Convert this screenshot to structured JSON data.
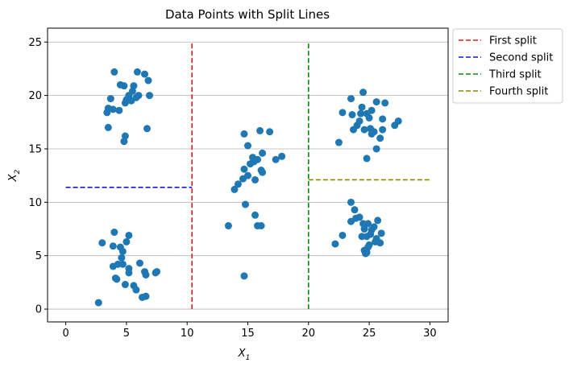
{
  "chart_data": {
    "type": "scatter",
    "title": "Data Points with Split Lines",
    "xlabel": "X",
    "xlabel_sub": "1",
    "ylabel": "X",
    "ylabel_sub": "2",
    "xlim": [
      -1.5,
      31.5
    ],
    "ylim": [
      -1.2,
      26.3
    ],
    "xticks": [
      0,
      5,
      10,
      15,
      20,
      25,
      30
    ],
    "yticks": [
      0,
      5,
      10,
      15,
      20,
      25
    ],
    "grid": "horizontal",
    "legend_position": "outside-top-right",
    "point_color": "#1f77b4",
    "points": [
      [
        5.9,
        22.2
      ],
      [
        4.0,
        22.2
      ],
      [
        6.5,
        22.0
      ],
      [
        6.8,
        21.4
      ],
      [
        4.5,
        21.0
      ],
      [
        4.8,
        20.9
      ],
      [
        5.6,
        20.9
      ],
      [
        5.5,
        20.4
      ],
      [
        5.2,
        20.0
      ],
      [
        6.0,
        20.0
      ],
      [
        6.9,
        20.0
      ],
      [
        3.7,
        19.7
      ],
      [
        5.8,
        19.8
      ],
      [
        5.0,
        19.6
      ],
      [
        5.4,
        19.5
      ],
      [
        4.9,
        19.3
      ],
      [
        3.5,
        18.8
      ],
      [
        3.9,
        18.7
      ],
      [
        4.4,
        18.6
      ],
      [
        3.4,
        18.4
      ],
      [
        3.5,
        17.0
      ],
      [
        6.7,
        16.9
      ],
      [
        4.9,
        16.2
      ],
      [
        4.8,
        15.7
      ],
      [
        14.7,
        16.4
      ],
      [
        16.0,
        16.7
      ],
      [
        16.8,
        16.6
      ],
      [
        15.0,
        15.3
      ],
      [
        17.8,
        14.3
      ],
      [
        16.2,
        14.6
      ],
      [
        15.4,
        14.2
      ],
      [
        17.3,
        14.0
      ],
      [
        15.8,
        14.0
      ],
      [
        15.2,
        13.6
      ],
      [
        15.5,
        13.8
      ],
      [
        14.7,
        13.1
      ],
      [
        16.1,
        13.0
      ],
      [
        15.0,
        12.5
      ],
      [
        16.2,
        12.8
      ],
      [
        14.6,
        12.2
      ],
      [
        15.6,
        12.1
      ],
      [
        14.2,
        11.7
      ],
      [
        13.9,
        11.2
      ],
      [
        14.8,
        9.8
      ],
      [
        15.6,
        8.8
      ],
      [
        13.4,
        7.8
      ],
      [
        15.8,
        7.8
      ],
      [
        16.1,
        7.8
      ],
      [
        14.7,
        3.1
      ],
      [
        24.5,
        20.3
      ],
      [
        23.5,
        19.7
      ],
      [
        25.6,
        19.4
      ],
      [
        26.3,
        19.3
      ],
      [
        24.4,
        18.9
      ],
      [
        25.2,
        18.6
      ],
      [
        22.8,
        18.4
      ],
      [
        23.6,
        18.2
      ],
      [
        24.3,
        18.3
      ],
      [
        24.8,
        18.3
      ],
      [
        25.0,
        17.9
      ],
      [
        24.2,
        17.6
      ],
      [
        26.1,
        17.8
      ],
      [
        27.4,
        17.6
      ],
      [
        27.1,
        17.2
      ],
      [
        24.0,
        17.2
      ],
      [
        25.1,
        16.9
      ],
      [
        24.6,
        16.8
      ],
      [
        23.7,
        16.8
      ],
      [
        25.4,
        16.6
      ],
      [
        26.1,
        16.8
      ],
      [
        25.2,
        16.4
      ],
      [
        25.9,
        16.0
      ],
      [
        22.5,
        15.6
      ],
      [
        25.6,
        15.0
      ],
      [
        24.8,
        14.1
      ],
      [
        23.5,
        10.0
      ],
      [
        23.8,
        9.3
      ],
      [
        24.2,
        8.6
      ],
      [
        24.9,
        8.0
      ],
      [
        23.5,
        8.2
      ],
      [
        25.7,
        8.3
      ],
      [
        23.9,
        8.5
      ],
      [
        24.5,
        8.0
      ],
      [
        25.4,
        7.7
      ],
      [
        25.2,
        7.4
      ],
      [
        24.6,
        7.5
      ],
      [
        26.0,
        7.1
      ],
      [
        25.1,
        7.0
      ],
      [
        24.8,
        6.8
      ],
      [
        24.4,
        6.8
      ],
      [
        22.8,
        6.9
      ],
      [
        25.5,
        6.3
      ],
      [
        25.9,
        6.2
      ],
      [
        25.6,
        6.6
      ],
      [
        25.0,
        6.0
      ],
      [
        24.9,
        5.8
      ],
      [
        22.2,
        6.1
      ],
      [
        24.6,
        5.5
      ],
      [
        24.8,
        5.3
      ],
      [
        24.7,
        5.2
      ],
      [
        4.0,
        7.2
      ],
      [
        5.2,
        6.9
      ],
      [
        3.0,
        6.2
      ],
      [
        3.9,
        5.9
      ],
      [
        5.0,
        6.3
      ],
      [
        4.5,
        5.8
      ],
      [
        4.7,
        5.4
      ],
      [
        4.6,
        4.8
      ],
      [
        4.3,
        4.2
      ],
      [
        4.7,
        4.2
      ],
      [
        3.9,
        4.0
      ],
      [
        6.1,
        4.3
      ],
      [
        5.2,
        3.8
      ],
      [
        6.5,
        3.5
      ],
      [
        6.6,
        3.2
      ],
      [
        7.4,
        3.4
      ],
      [
        7.5,
        3.5
      ],
      [
        5.2,
        3.4
      ],
      [
        4.1,
        2.9
      ],
      [
        4.2,
        2.8
      ],
      [
        5.6,
        2.2
      ],
      [
        4.9,
        2.3
      ],
      [
        5.8,
        1.8
      ],
      [
        6.6,
        1.2
      ],
      [
        6.3,
        1.1
      ],
      [
        2.7,
        0.6
      ]
    ],
    "split_lines": [
      {
        "name": "First split",
        "color": "#e41a1c",
        "x": [
          10.4,
          10.4
        ],
        "y": [
          0,
          25
        ]
      },
      {
        "name": "Second split",
        "color": "#1515dd",
        "x": [
          0,
          10.4
        ],
        "y": [
          11.4,
          11.4
        ]
      },
      {
        "name": "Third split",
        "color": "#0d8a0d",
        "x": [
          20.0,
          20.0
        ],
        "y": [
          0,
          25
        ]
      },
      {
        "name": "Fourth split",
        "color": "#8a8a00",
        "x": [
          20.0,
          30.0
        ],
        "y": [
          12.1,
          12.1
        ]
      }
    ]
  }
}
